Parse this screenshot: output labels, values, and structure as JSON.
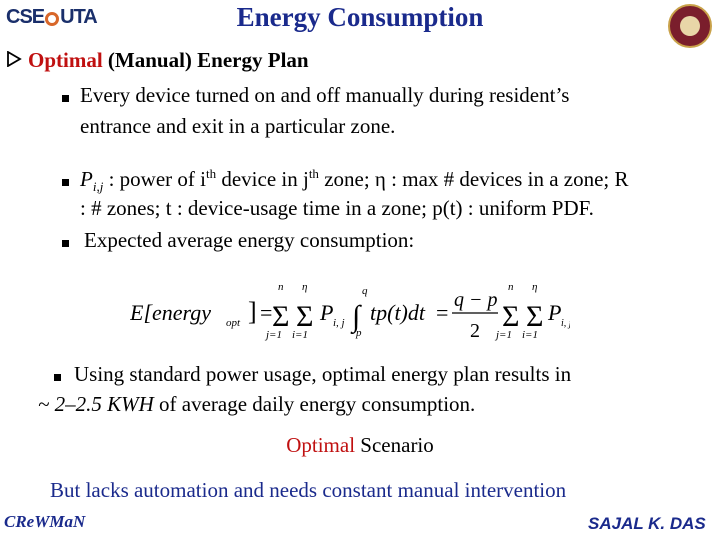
{
  "header": {
    "logo_left": "CSE",
    "logo_right": "UTA",
    "title": "Energy Consumption"
  },
  "heading": {
    "red": "Optimal",
    "rest": " (Manual) Energy Plan"
  },
  "bullets": {
    "b1_line1": "Every device turned on and off manually during resident’s",
    "b1_line2": "entrance and exit in a particular zone.",
    "b2_p": "P",
    "b2_sub": "i,j",
    "b2_a": " : power of i",
    "b2_sup1": "th",
    "b2_b": " device in j",
    "b2_sup2": "th",
    "b2_c": " zone;  η : max # devices in a zone; R",
    "b2_line2": ": # zones; t : device-usage time in a zone; p(t) : uniform PDF.",
    "b3": "Expected average energy consumption:"
  },
  "formula": {
    "lhs": "E[energy",
    "lhs_sub": "opt",
    "lhs_close": "]",
    "n": "n",
    "eta": "η",
    "j1": "j=1",
    "i1": "i=1",
    "pij": "P",
    "pij_sub": "i, j",
    "q": "q",
    "p": "p",
    "integrand": "tp(t)dt",
    "frac_num": "q − p",
    "frac_den": "2"
  },
  "lower": {
    "b4_line1": "Using standard power usage, optimal energy plan results in",
    "b4_italic": "~ 2–2.5 KWH",
    "b4_rest": " of average daily energy consumption.",
    "scenario_red": "Optimal",
    "scenario_rest": " Scenario",
    "lacks": "But lacks automation and needs constant manual intervention"
  },
  "footer": {
    "left": "CReWMaN",
    "right": "SAJAL K. DAS"
  }
}
